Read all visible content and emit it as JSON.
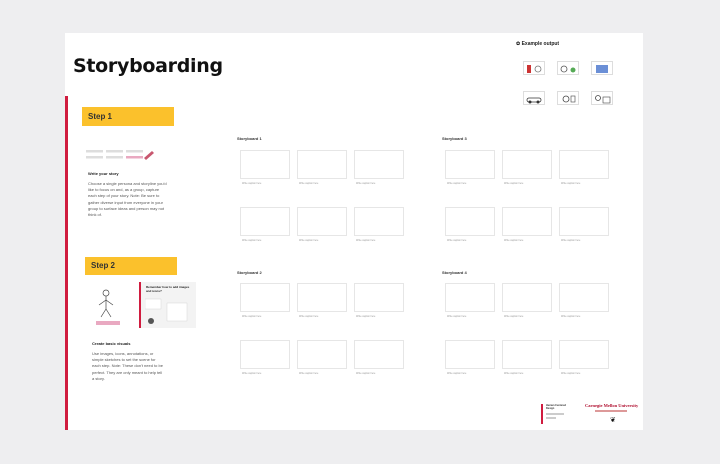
{
  "page": {
    "title": "Storyboarding"
  },
  "example": {
    "label": "Example output",
    "icon": "bulb-icon"
  },
  "steps": [
    {
      "label": "Step 1",
      "head": "Write your story",
      "body": "Choose a single persona and storyline you'd like to focus on and, as a group, capture each step of your story. Note: Be sure to gather diverse input from everyone in your group to surface ideas and person may not think of."
    },
    {
      "label": "Step 2",
      "head": "Create basic visuals",
      "body": "Use images, icons, annotations, or simple sketches to set the scene for each step. Note: These don't need to be perfect. They are only meant to help tell a story."
    }
  ],
  "step2_tip": "Remember how to add images and icons?",
  "storyboards": [
    {
      "label": "Storyboard 1"
    },
    {
      "label": "Storyboard 2"
    },
    {
      "label": "Storyboard 3"
    },
    {
      "label": "Storyboard 4"
    }
  ],
  "frame_caption": "Write caption here",
  "footer": {
    "org": "Carnegie Mellon University",
    "badge_title": "Human Centered Design"
  },
  "colors": {
    "accent": "#fbc12c",
    "red": "#d01c3f",
    "canvas": "#eeeef0"
  }
}
